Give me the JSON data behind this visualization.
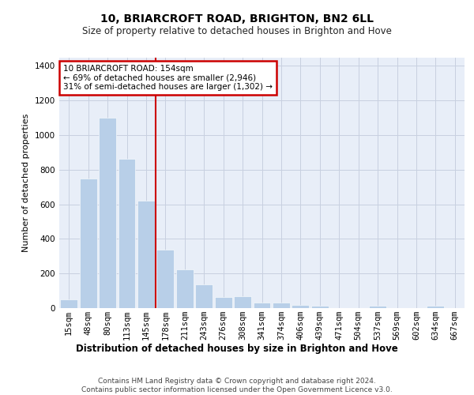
{
  "title": "10, BRIARCROFT ROAD, BRIGHTON, BN2 6LL",
  "subtitle": "Size of property relative to detached houses in Brighton and Hove",
  "xlabel": "Distribution of detached houses by size in Brighton and Hove",
  "ylabel": "Number of detached properties",
  "footer_line1": "Contains HM Land Registry data © Crown copyright and database right 2024.",
  "footer_line2": "Contains public sector information licensed under the Open Government Licence v3.0.",
  "categories": [
    "15sqm",
    "48sqm",
    "80sqm",
    "113sqm",
    "145sqm",
    "178sqm",
    "211sqm",
    "243sqm",
    "276sqm",
    "308sqm",
    "341sqm",
    "374sqm",
    "406sqm",
    "439sqm",
    "471sqm",
    "504sqm",
    "537sqm",
    "569sqm",
    "602sqm",
    "634sqm",
    "667sqm"
  ],
  "values": [
    50,
    750,
    1100,
    865,
    620,
    340,
    225,
    135,
    65,
    70,
    30,
    30,
    20,
    12,
    0,
    0,
    12,
    0,
    0,
    12,
    0
  ],
  "bar_color": "#b8cfe8",
  "grid_color": "#c8d0e0",
  "bg_color": "#e8eef8",
  "annotation_text": "10 BRIARCROFT ROAD: 154sqm\n← 69% of detached houses are smaller (2,946)\n31% of semi-detached houses are larger (1,302) →",
  "annotation_box_color": "#cc0000",
  "vline_x": 4.5,
  "vline_color": "#cc0000",
  "ylim": [
    0,
    1450
  ],
  "yticks": [
    0,
    200,
    400,
    600,
    800,
    1000,
    1200,
    1400
  ],
  "title_fontsize": 10,
  "subtitle_fontsize": 8.5,
  "ylabel_fontsize": 8,
  "xlabel_fontsize": 8.5,
  "tick_fontsize": 7.5,
  "ann_fontsize": 7.5,
  "footer_fontsize": 6.5
}
